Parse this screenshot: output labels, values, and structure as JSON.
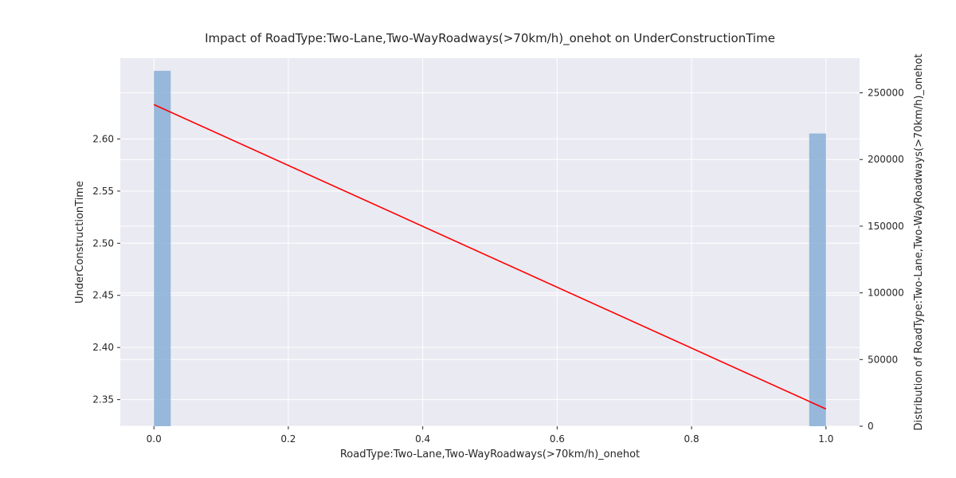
{
  "chart_data": {
    "type": "bar+line",
    "title": "Impact of RoadType:Two-Lane,Two-WayRoadways(>70km/h)_onehot on UnderConstructionTime",
    "xlabel": "RoadType:Two-Lane,Two-WayRoadways(>70km/h)_onehot",
    "ylabel": "UnderConstructionTime",
    "y2label": "Distribution of RoadType:Two-Lane,Two-WayRoadways(>70km/h)_onehot",
    "xlim": [
      -0.05,
      1.05
    ],
    "ylim": [
      2.3245,
      2.6775
    ],
    "y2lim": [
      0,
      276000
    ],
    "x_ticks": [
      "0.0",
      "0.2",
      "0.4",
      "0.6",
      "0.8",
      "1.0"
    ],
    "y_ticks": [
      "2.35",
      "2.40",
      "2.45",
      "2.50",
      "2.55",
      "2.60"
    ],
    "y2_ticks": [
      "0",
      "50000",
      "100000",
      "150000",
      "200000",
      "250000"
    ],
    "grid": true,
    "histogram": {
      "name": "",
      "color": "#7ba6d3",
      "bins": [
        {
          "x0": 0.0,
          "x1": 0.025,
          "count": 266500
        },
        {
          "x0": 0.975,
          "x1": 1.0,
          "count": 219500
        }
      ]
    },
    "line": {
      "name": "",
      "color": "#ff0000",
      "x": [
        0.0,
        1.0
      ],
      "y": [
        2.633,
        2.341
      ]
    },
    "colors": {
      "plot_background": "#eaeaf2",
      "grid": "#ffffff"
    }
  }
}
